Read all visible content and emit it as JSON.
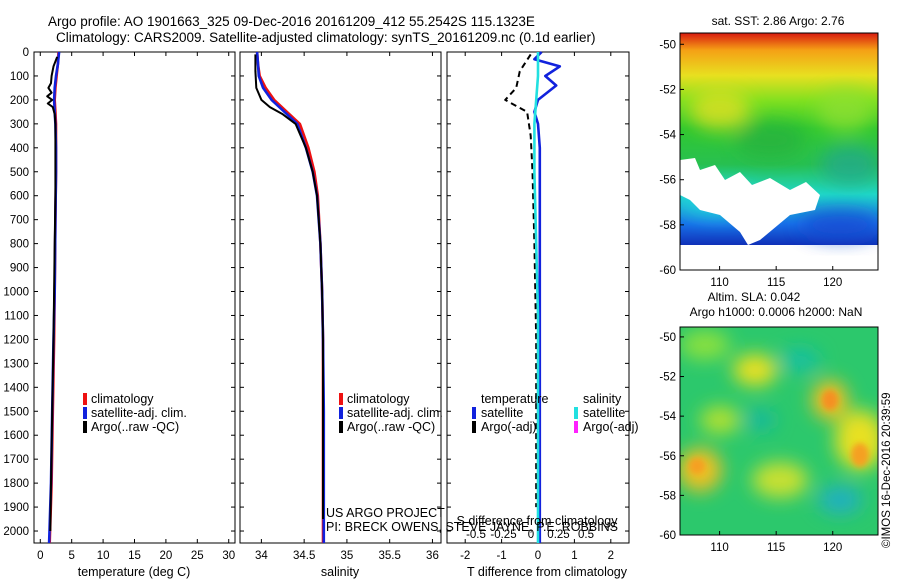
{
  "header": {
    "line1": "Argo profile: AO 1901663_325 09-Dec-2016 20161209_412 55.2542S 115.1323E",
    "line2": "Climatology: CARS2009. Satellite-adjusted climatology: synTS_20161209.nc (0.1d earlier)"
  },
  "credits": {
    "project": "US ARGO PROJECT",
    "pi": "PI: BRECK OWENS, STEVE JAYNE, P.E. ROBBINS"
  },
  "timestamp": "©IMOS 16-Dec-2016 20:39:59",
  "colors": {
    "climatology": "#ee1111",
    "satellite": "#1122dd",
    "argo": "#000000",
    "sal_satellite": "#22e0e0",
    "sal_argo": "#ff22ff"
  },
  "chart_data": [
    {
      "type": "line",
      "panel": "temperature",
      "xlabel": "temperature (deg C)",
      "ylabel": "",
      "xlim": [
        -1,
        31
      ],
      "ylim": [
        2050,
        0
      ],
      "xticks": [
        0,
        5,
        10,
        15,
        20,
        25,
        30
      ],
      "yticks": [
        0,
        100,
        200,
        300,
        400,
        500,
        600,
        700,
        800,
        900,
        1000,
        1100,
        1200,
        1300,
        1400,
        1500,
        1600,
        1700,
        1800,
        1900,
        2000
      ],
      "legend": [
        "climatology",
        "satellite-adj. clim.",
        "Argo(..raw -QC)"
      ],
      "series": [
        {
          "name": "climatology",
          "color": "#ee1111",
          "points": [
            [
              2.9,
              0
            ],
            [
              2.8,
              50
            ],
            [
              2.6,
              100
            ],
            [
              2.4,
              150
            ],
            [
              2.3,
              200
            ],
            [
              2.4,
              250
            ],
            [
              2.5,
              300
            ],
            [
              2.5,
              400
            ],
            [
              2.5,
              500
            ],
            [
              2.4,
              700
            ],
            [
              2.3,
              1000
            ],
            [
              2.2,
              1200
            ],
            [
              2.0,
              1500
            ],
            [
              1.8,
              1800
            ],
            [
              1.5,
              2050
            ]
          ]
        },
        {
          "name": "satellite-adj. clim.",
          "color": "#1122dd",
          "points": [
            [
              3.0,
              0
            ],
            [
              2.8,
              50
            ],
            [
              2.5,
              100
            ],
            [
              2.3,
              150
            ],
            [
              2.2,
              200
            ],
            [
              2.3,
              250
            ],
            [
              2.4,
              300
            ],
            [
              2.5,
              400
            ],
            [
              2.5,
              500
            ],
            [
              2.4,
              700
            ],
            [
              2.3,
              1000
            ],
            [
              2.1,
              1200
            ],
            [
              1.9,
              1500
            ],
            [
              1.7,
              1800
            ],
            [
              1.4,
              2050
            ]
          ]
        },
        {
          "name": "Argo(..raw -QC)",
          "color": "#000000",
          "points": [
            [
              2.7,
              20
            ],
            [
              2.1,
              60
            ],
            [
              1.8,
              100
            ],
            [
              1.7,
              130
            ],
            [
              1.3,
              150
            ],
            [
              1.8,
              170
            ],
            [
              1.1,
              185
            ],
            [
              1.9,
              200
            ],
            [
              1.2,
              215
            ],
            [
              2.0,
              230
            ],
            [
              2.3,
              260
            ],
            [
              2.4,
              300
            ],
            [
              2.4,
              400
            ],
            [
              2.4,
              600
            ],
            [
              2.3,
              800
            ],
            [
              2.2,
              1000
            ],
            [
              2.1,
              1200
            ],
            [
              1.9,
              1500
            ],
            [
              1.7,
              1800
            ],
            [
              1.6,
              2000
            ]
          ]
        }
      ]
    },
    {
      "type": "line",
      "panel": "salinity",
      "xlabel": "salinity",
      "ylabel": "",
      "xlim": [
        33.75,
        36.1
      ],
      "ylim": [
        2050,
        0
      ],
      "xticks": [
        34,
        34.5,
        35,
        35.5,
        36
      ],
      "legend": [
        "climatology",
        "satellite-adj. clim.",
        "Argo(..raw -QC)"
      ],
      "series": [
        {
          "name": "climatology",
          "color": "#ee1111",
          "points": [
            [
              33.95,
              0
            ],
            [
              33.96,
              50
            ],
            [
              33.98,
              100
            ],
            [
              34.05,
              150
            ],
            [
              34.15,
              200
            ],
            [
              34.3,
              250
            ],
            [
              34.45,
              300
            ],
            [
              34.55,
              400
            ],
            [
              34.62,
              500
            ],
            [
              34.66,
              600
            ],
            [
              34.69,
              800
            ],
            [
              34.71,
              1000
            ],
            [
              34.72,
              1200
            ],
            [
              34.72,
              1500
            ],
            [
              34.72,
              2050
            ]
          ]
        },
        {
          "name": "satellite-adj. clim.",
          "color": "#1122dd",
          "points": [
            [
              33.95,
              0
            ],
            [
              33.96,
              50
            ],
            [
              33.97,
              100
            ],
            [
              34.02,
              150
            ],
            [
              34.12,
              200
            ],
            [
              34.27,
              250
            ],
            [
              34.42,
              300
            ],
            [
              34.52,
              400
            ],
            [
              34.6,
              500
            ],
            [
              34.65,
              600
            ],
            [
              34.69,
              800
            ],
            [
              34.71,
              1000
            ],
            [
              34.72,
              1200
            ],
            [
              34.73,
              1500
            ],
            [
              34.73,
              2050
            ]
          ]
        },
        {
          "name": "Argo(..raw -QC)",
          "color": "#000000",
          "points": [
            [
              33.93,
              10
            ],
            [
              33.93,
              80
            ],
            [
              33.94,
              150
            ],
            [
              34.0,
              200
            ],
            [
              34.1,
              230
            ],
            [
              34.25,
              260
            ],
            [
              34.4,
              300
            ],
            [
              34.52,
              400
            ],
            [
              34.6,
              500
            ],
            [
              34.65,
              600
            ],
            [
              34.69,
              800
            ],
            [
              34.71,
              1000
            ],
            [
              34.72,
              1200
            ],
            [
              34.72,
              1500
            ],
            [
              34.72,
              1950
            ]
          ]
        }
      ]
    },
    {
      "type": "line",
      "panel": "difference",
      "xlabel": "T difference from climatology",
      "xlabel2": "S difference from climatology",
      "xlim": [
        -2.5,
        2.5
      ],
      "ylim": [
        2050,
        0
      ],
      "xticks": [
        -2,
        -1,
        0,
        1,
        2
      ],
      "xticks_s": [
        "-0.5",
        "-0.25",
        "0",
        "0.25",
        "0.5"
      ],
      "legend_titles": [
        "temperature",
        "salinity"
      ],
      "legend": [
        "satellite",
        "Argo(-adj)",
        "satellite",
        "Argo(-adj)"
      ],
      "series": [
        {
          "name": "temperature satellite",
          "color": "#1122dd",
          "points": [
            [
              0.1,
              0
            ],
            [
              -0.1,
              30
            ],
            [
              0.6,
              60
            ],
            [
              0.2,
              100
            ],
            [
              0.5,
              140
            ],
            [
              0.0,
              200
            ],
            [
              -0.1,
              250
            ],
            [
              0.0,
              300
            ],
            [
              0.05,
              400
            ],
            [
              0.05,
              600
            ],
            [
              0.05,
              1000
            ],
            [
              0.05,
              2050
            ]
          ]
        },
        {
          "name": "temperature Argo(-adj)",
          "color": "#000000",
          "points": [
            [
              -0.2,
              10
            ],
            [
              -0.5,
              80
            ],
            [
              -0.6,
              150
            ],
            [
              -0.9,
              200
            ],
            [
              -0.3,
              250
            ],
            [
              -0.2,
              350
            ],
            [
              -0.15,
              500
            ],
            [
              -0.1,
              800
            ],
            [
              -0.05,
              1200
            ],
            [
              -0.05,
              1500
            ],
            [
              -0.05,
              1900
            ]
          ]
        },
        {
          "name": "salinity satellite",
          "color": "#22e0e0",
          "points": [
            [
              0.0,
              0
            ],
            [
              0.0,
              100
            ],
            [
              -0.05,
              200
            ],
            [
              -0.1,
              300
            ],
            [
              -0.1,
              500
            ],
            [
              -0.05,
              800
            ],
            [
              0.0,
              1100
            ],
            [
              0.0,
              1500
            ],
            [
              0.0,
              2050
            ]
          ]
        }
      ]
    },
    {
      "type": "heatmap",
      "panel": "sat-sst-map",
      "title": "sat. SST: 2.86 Argo: 2.76",
      "xlim": [
        106.5,
        124
      ],
      "ylim": [
        -60,
        -49.5
      ],
      "xticks": [
        110,
        115,
        120
      ],
      "yticks": [
        -50,
        -52,
        -54,
        -56,
        -58,
        -60
      ],
      "colormap": "jet"
    },
    {
      "type": "heatmap",
      "panel": "altim-map",
      "title": "Altim. SLA: 0.042",
      "subtitle": "Argo h1000: 0.0006 h2000: NaN",
      "xlim": [
        106.5,
        124
      ],
      "ylim": [
        -60,
        -49.5
      ],
      "xticks": [
        110,
        115,
        120
      ],
      "yticks": [
        -50,
        -52,
        -54,
        -56,
        -58,
        -60
      ],
      "colormap": "jet"
    }
  ]
}
